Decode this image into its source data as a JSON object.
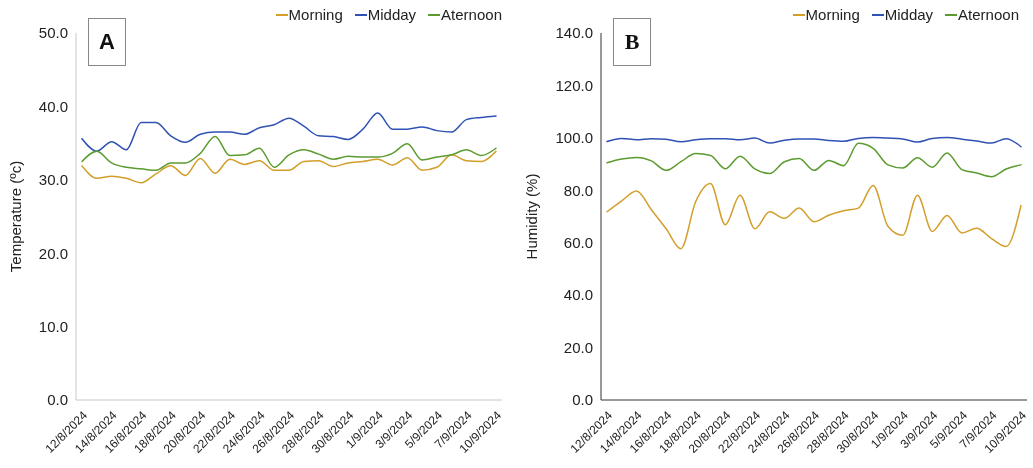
{
  "chart_data": [
    {
      "type": "line",
      "annotations": [
        "A"
      ],
      "ylabel": "Temperature (ºc)",
      "categories": [
        "12/8/2024",
        null,
        "14/8/2024",
        null,
        "16/8/2024",
        null,
        "18/8/2024",
        null,
        "20/8/2024",
        null,
        "22/8/2024",
        null,
        "24/6/2024",
        null,
        "26/8/2024",
        null,
        "28/8/2024",
        null,
        "30/8/2024",
        null,
        "1/9/2024",
        null,
        "3/9/2024",
        null,
        "5/9/2024",
        null,
        "7/9/2024",
        null,
        "10/9/2024"
      ],
      "series": [
        {
          "name": "Morning",
          "color": "#d39e2a",
          "values": [
            31.9,
            30.2,
            30.5,
            30.2,
            29.6,
            30.8,
            31.9,
            30.6,
            32.9,
            30.9,
            32.8,
            32.1,
            32.6,
            31.3,
            31.3,
            32.5,
            32.6,
            31.8,
            32.3,
            32.5,
            32.8,
            32.0,
            33.0,
            31.3,
            31.7,
            33.4,
            32.6,
            32.5,
            33.9
          ]
        },
        {
          "name": "Midday",
          "color": "#2f52b4",
          "values": [
            35.6,
            33.9,
            35.2,
            34.1,
            37.8,
            37.8,
            36.0,
            35.1,
            36.2,
            36.5,
            36.5,
            36.2,
            37.1,
            37.5,
            38.4,
            37.3,
            36.0,
            35.9,
            35.5,
            36.9,
            39.1,
            36.9,
            36.9,
            37.2,
            36.7,
            36.5,
            38.2,
            38.5,
            38.7
          ]
        },
        {
          "name": "Aternoon",
          "color": "#5b9b2f",
          "values": [
            32.5,
            33.9,
            32.3,
            31.7,
            31.5,
            31.3,
            32.3,
            32.3,
            33.6,
            35.9,
            33.3,
            33.4,
            34.3,
            31.7,
            33.4,
            34.1,
            33.5,
            32.8,
            33.2,
            33.1,
            33.1,
            33.6,
            34.9,
            32.7,
            33.1,
            33.4,
            34.1,
            33.3,
            34.3
          ]
        }
      ],
      "ylim": [
        0,
        50
      ],
      "yticks": [
        {
          "value": 0,
          "label": "0.0"
        },
        {
          "value": 10,
          "label": "10.0"
        },
        {
          "value": 20,
          "label": "20.0"
        },
        {
          "value": 30,
          "label": "30.0"
        },
        {
          "value": 40,
          "label": "40.0"
        },
        {
          "value": 50,
          "label": "50.0"
        }
      ],
      "grid": false,
      "legend": "top right",
      "marker": "none",
      "line_style": "solid"
    },
    {
      "type": "line",
      "annotations": [
        "B"
      ],
      "ylabel": "Humidity  (%)",
      "categories": [
        "12/8/2024",
        null,
        "14/8/2024",
        null,
        "16/8/2024",
        null,
        "18/8/2024",
        null,
        "20/8/2024",
        null,
        "22/8/2024",
        null,
        "24/8/2024",
        null,
        "26/8/2024",
        null,
        "28/8/2024",
        null,
        "30/8/2024",
        null,
        "1/9/2024",
        null,
        "3/9/2024",
        null,
        "5/9/2024",
        null,
        "7/9/2024",
        null,
        "10/9/2024"
      ],
      "series": [
        {
          "name": "Morning",
          "color": "#d39e2a",
          "values": [
            71.8,
            76.0,
            79.7,
            72.6,
            65.3,
            57.7,
            75.7,
            82.6,
            66.9,
            78.1,
            65.3,
            71.8,
            69.3,
            73.2,
            68.0,
            70.5,
            72.2,
            73.2,
            81.8,
            66.3,
            62.8,
            78.1,
            64.3,
            70.4,
            63.7,
            65.5,
            61.6,
            58.6,
            74.2
          ]
        },
        {
          "name": "Midday",
          "color": "#2f52b4",
          "values": [
            98.6,
            99.8,
            99.3,
            99.7,
            99.5,
            98.5,
            99.3,
            99.7,
            99.7,
            99.3,
            99.9,
            98.0,
            99.1,
            99.6,
            99.6,
            99.0,
            98.7,
            99.8,
            100.1,
            99.9,
            99.6,
            98.4,
            99.8,
            100.1,
            99.5,
            98.8,
            98.0,
            99.7,
            96.6
          ]
        },
        {
          "name": "Aternoon",
          "color": "#5b9b2f",
          "values": [
            90.5,
            91.9,
            92.5,
            91.2,
            87.6,
            90.9,
            94.0,
            93.3,
            88.2,
            93.0,
            88.2,
            86.4,
            90.9,
            92.1,
            87.6,
            91.4,
            89.4,
            97.9,
            96.0,
            89.7,
            88.5,
            92.4,
            88.8,
            94.2,
            87.9,
            86.6,
            85.2,
            88.1,
            89.7
          ]
        }
      ],
      "ylim": [
        0,
        140
      ],
      "yticks": [
        {
          "value": 0,
          "label": "0.0"
        },
        {
          "value": 20,
          "label": "20.0"
        },
        {
          "value": 40,
          "label": "40.0"
        },
        {
          "value": 60,
          "label": "60.0"
        },
        {
          "value": 80,
          "label": "80.0"
        },
        {
          "value": 100,
          "label": "100.0"
        },
        {
          "value": 120,
          "label": "120.0"
        },
        {
          "value": 140,
          "label": "140.0"
        }
      ],
      "grid": false,
      "legend": "top right",
      "marker": "none",
      "line_style": "solid"
    }
  ]
}
